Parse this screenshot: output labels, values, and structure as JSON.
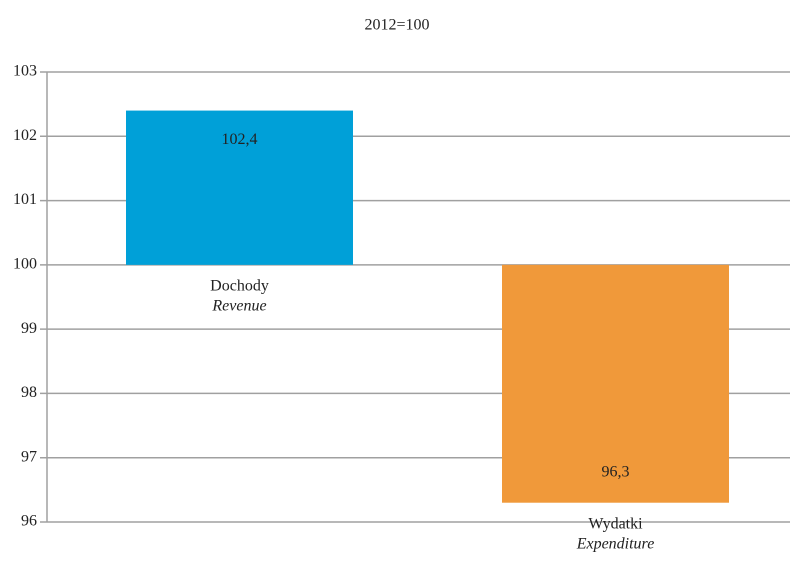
{
  "chart_data": {
    "type": "bar",
    "title": "2012=100",
    "categories": [
      "Dochody",
      "Wydatki"
    ],
    "categories_en": [
      "Revenue",
      "Expenditure"
    ],
    "series": [
      {
        "values": [
          102.4,
          96.3
        ],
        "value_labels": [
          "102,4",
          "96,3"
        ],
        "colors": [
          "#00a0d8",
          "#f0993a"
        ]
      }
    ],
    "bar_base": 100,
    "ylim": [
      96,
      103
    ],
    "yticks": [
      96,
      97,
      98,
      99,
      100,
      101,
      102,
      103
    ],
    "grid": true
  }
}
